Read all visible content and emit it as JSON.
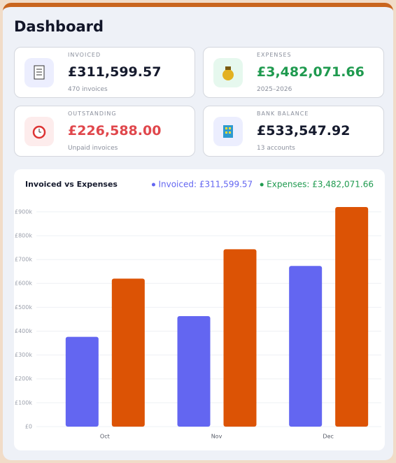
{
  "header": {
    "title": "Dashboard"
  },
  "cards": [
    {
      "label": "INVOICED",
      "value": "£311,599.57",
      "sub": "470 invoices",
      "color": "#151a2d"
    },
    {
      "label": "EXPENSES",
      "value": "£3,482,071.66",
      "sub": "2025–2026",
      "color": "#1f9a4f"
    },
    {
      "label": "OUTSTANDING",
      "value": "£226,588.00",
      "sub": "Unpaid invoices",
      "color": "#e0474c"
    },
    {
      "label": "BANK BALANCE",
      "value": "£533,547.92",
      "sub": "13 accounts",
      "color": "#151a2d"
    }
  ],
  "chart_data": {
    "type": "bar",
    "title": "Invoiced vs Expenses",
    "categories": [
      "Oct",
      "Nov",
      "Dec"
    ],
    "series": [
      {
        "name": "Invoiced: £311,599.57",
        "color": "#6366f1",
        "label_color": "#6366f1",
        "values": [
          376000,
          463000,
          673000
        ]
      },
      {
        "name": "Expenses: £3,482,071.66",
        "color": "#dc5305",
        "label_color": "#1f9a4f",
        "values": [
          620000,
          743000,
          920000
        ]
      }
    ],
    "ylim": [
      0,
      920000
    ],
    "yticks": [
      {
        "value": 0,
        "label": "£0"
      },
      {
        "value": 100000,
        "label": "£100k"
      },
      {
        "value": 200000,
        "label": "£200k"
      },
      {
        "value": 300000,
        "label": "£300k"
      },
      {
        "value": 400000,
        "label": "£400k"
      },
      {
        "value": 500000,
        "label": "£500k"
      },
      {
        "value": 600000,
        "label": "£600k"
      },
      {
        "value": 700000,
        "label": "£700k"
      },
      {
        "value": 800000,
        "label": "£800k"
      },
      {
        "value": 900000,
        "label": "£900k"
      }
    ],
    "grid": true
  }
}
